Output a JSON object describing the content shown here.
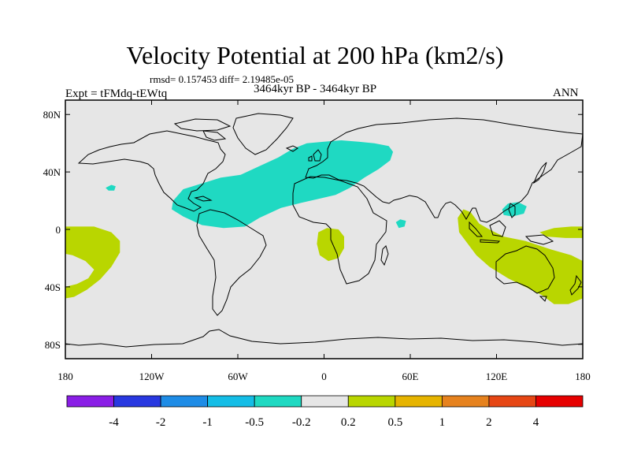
{
  "header": {
    "title": "Velocity Potential at 200 hPa (km2/s)",
    "stats": "rmsd= 0.157453  diff= 2.19485e-05",
    "subtitle": "3464kyr BP - 3464kyr BP",
    "left_label": "Expt = tFMdq-tEWtq",
    "right_label": "ANN"
  },
  "colors": {
    "background": "#e6e6e6",
    "land_outline": "#000000",
    "negative_region": "#1fd9c2",
    "positive_region": "#b9d600"
  },
  "chart_data": {
    "type": "heatmap",
    "projection": "cylindrical-equidistant",
    "title": "Velocity Potential at 200 hPa (km2/s)",
    "x_range": [
      -180,
      180
    ],
    "y_range": [
      -90,
      90
    ],
    "x_ticks": [
      {
        "value": -180,
        "label": "180"
      },
      {
        "value": -120,
        "label": "120W"
      },
      {
        "value": -60,
        "label": "60W"
      },
      {
        "value": 0,
        "label": "0"
      },
      {
        "value": 60,
        "label": "60E"
      },
      {
        "value": 120,
        "label": "120E"
      },
      {
        "value": 180,
        "label": "180"
      }
    ],
    "y_ticks": [
      {
        "value": 80,
        "label": "80N"
      },
      {
        "value": 40,
        "label": "40N"
      },
      {
        "value": 0,
        "label": "0"
      },
      {
        "value": -40,
        "label": "40S"
      },
      {
        "value": -80,
        "label": "80S"
      }
    ],
    "colorbar": {
      "levels": [
        "-4",
        "-2",
        "-1",
        "-0.5",
        "-0.2",
        "0.2",
        "0.5",
        "1",
        "2",
        "4"
      ],
      "colors": [
        "#8a1ee6",
        "#2838e0",
        "#1e8ce6",
        "#14bde6",
        "#1fd9c2",
        "#e6e6e6",
        "#b9d600",
        "#e6b400",
        "#e6821e",
        "#e64614",
        "#e60000"
      ]
    },
    "regions": [
      {
        "name": "north-atlantic-africa-negative",
        "level_bin": "-0.5 to -0.2",
        "polygon": [
          [
            -105,
            20
          ],
          [
            -98,
            28
          ],
          [
            -85,
            32
          ],
          [
            -72,
            36
          ],
          [
            -58,
            38
          ],
          [
            -45,
            44
          ],
          [
            -32,
            50
          ],
          [
            -22,
            56
          ],
          [
            -12,
            60
          ],
          [
            0,
            61
          ],
          [
            12,
            62
          ],
          [
            24,
            61
          ],
          [
            35,
            60
          ],
          [
            45,
            58
          ],
          [
            48,
            54
          ],
          [
            46,
            48
          ],
          [
            38,
            42
          ],
          [
            28,
            36
          ],
          [
            18,
            29
          ],
          [
            8,
            24
          ],
          [
            -5,
            21
          ],
          [
            -18,
            18
          ],
          [
            -30,
            15
          ],
          [
            -45,
            8
          ],
          [
            -55,
            2
          ],
          [
            -70,
            1
          ],
          [
            -85,
            3
          ],
          [
            -98,
            9
          ],
          [
            -106,
            14
          ]
        ]
      },
      {
        "name": "small-negative-pacific",
        "level_bin": "-0.5 to -0.2",
        "polygon": [
          [
            -152,
            29
          ],
          [
            -148,
            31
          ],
          [
            -145,
            30
          ],
          [
            -146,
            27
          ],
          [
            -150,
            27
          ]
        ]
      },
      {
        "name": "small-negative-arabian-sea",
        "level_bin": "-0.5 to -0.2",
        "polygon": [
          [
            50,
            5
          ],
          [
            53,
            7
          ],
          [
            57,
            6
          ],
          [
            56,
            2
          ],
          [
            52,
            1
          ]
        ]
      },
      {
        "name": "small-negative-west-pacific",
        "level_bin": "-0.5 to -0.2",
        "polygon": [
          [
            124,
            14
          ],
          [
            128,
            18
          ],
          [
            135,
            19
          ],
          [
            141,
            16
          ],
          [
            139,
            11
          ],
          [
            131,
            9
          ],
          [
            125,
            10
          ]
        ]
      },
      {
        "name": "south-atlantic-positive",
        "level_bin": "0.2 to 0.5",
        "polygon": [
          [
            -4,
            -2
          ],
          [
            2,
            1
          ],
          [
            10,
            0
          ],
          [
            14,
            -5
          ],
          [
            14,
            -13
          ],
          [
            10,
            -20
          ],
          [
            3,
            -22
          ],
          [
            -3,
            -18
          ],
          [
            -5,
            -10
          ]
        ]
      },
      {
        "name": "indo-pacific-australia-positive",
        "level_bin": "0.2 to 0.5",
        "polygon": [
          [
            97,
            14
          ],
          [
            102,
            12
          ],
          [
            108,
            4
          ],
          [
            115,
            0
          ],
          [
            125,
            -5
          ],
          [
            140,
            -8
          ],
          [
            158,
            -14
          ],
          [
            172,
            -18
          ],
          [
            180,
            -22
          ],
          [
            180,
            -48
          ],
          [
            170,
            -52
          ],
          [
            160,
            -52
          ],
          [
            152,
            -46
          ],
          [
            140,
            -40
          ],
          [
            128,
            -34
          ],
          [
            115,
            -26
          ],
          [
            106,
            -18
          ],
          [
            100,
            -10
          ],
          [
            94,
            -2
          ],
          [
            93,
            8
          ]
        ]
      },
      {
        "name": "central-pacific-positive-east",
        "level_bin": "0.2 to 0.5",
        "polygon": [
          [
            150,
            -2
          ],
          [
            160,
            1
          ],
          [
            172,
            2
          ],
          [
            180,
            2
          ],
          [
            180,
            -6
          ],
          [
            168,
            -6
          ],
          [
            155,
            -5
          ]
        ]
      },
      {
        "name": "central-pacific-positive-west",
        "level_bin": "0.2 to 0.5",
        "polygon": [
          [
            -180,
            2
          ],
          [
            -160,
            2
          ],
          [
            -148,
            -2
          ],
          [
            -142,
            -8
          ],
          [
            -142,
            -16
          ],
          [
            -148,
            -26
          ],
          [
            -156,
            -35
          ],
          [
            -165,
            -42
          ],
          [
            -174,
            -47
          ],
          [
            -180,
            -48
          ],
          [
            -180,
            -40
          ],
          [
            -172,
            -38
          ],
          [
            -164,
            -34
          ],
          [
            -160,
            -28
          ],
          [
            -166,
            -22
          ],
          [
            -175,
            -18
          ],
          [
            -180,
            -17
          ]
        ]
      }
    ]
  }
}
